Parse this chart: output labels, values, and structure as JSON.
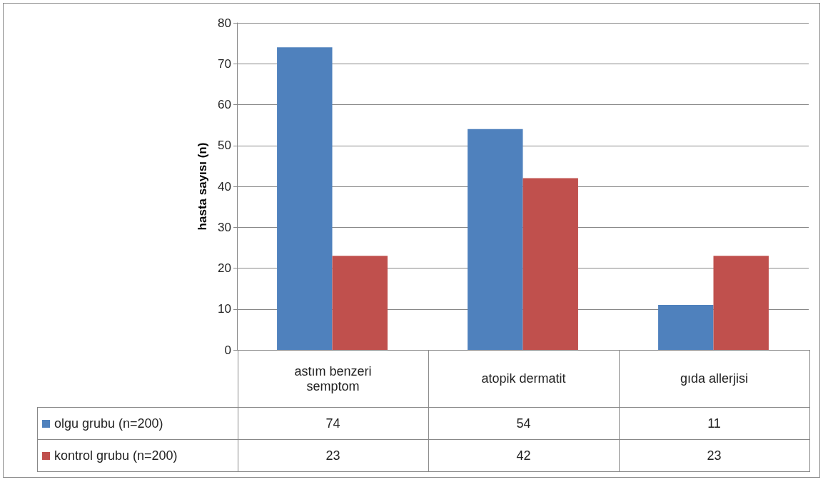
{
  "chart_data": {
    "type": "bar",
    "ylabel": "hasta sayısı (n)",
    "categories": [
      "astım benzeri semptom",
      "atopik dermatit",
      "gıda allerjisi"
    ],
    "series": [
      {
        "name": "olgu grubu (n=200)",
        "color": "#4f81bd",
        "values": [
          74,
          54,
          11
        ]
      },
      {
        "name": "kontrol grubu (n=200)",
        "color": "#c0504d",
        "values": [
          23,
          42,
          23
        ]
      }
    ],
    "ylim": [
      0,
      80
    ],
    "yticks": [
      0,
      10,
      20,
      30,
      40,
      50,
      60,
      70,
      80
    ],
    "grid": "y",
    "legend": "bottom",
    "data_labels": true
  }
}
